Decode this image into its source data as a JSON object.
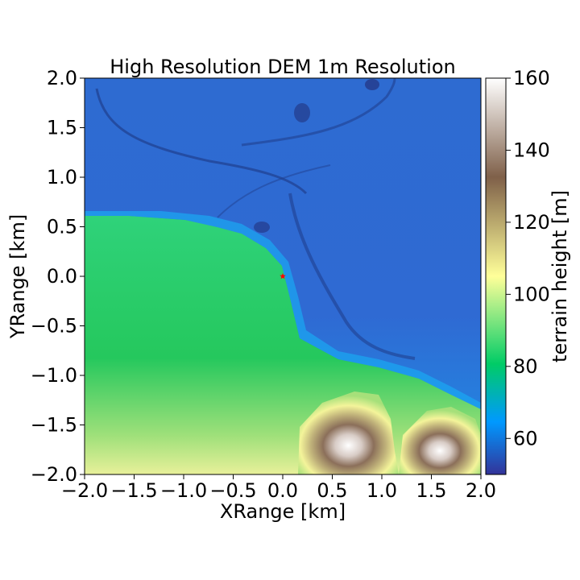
{
  "chart_data": {
    "type": "heatmap",
    "title": "High Resolution DEM 1m Resolution",
    "xlabel": "XRange [km]",
    "ylabel": "YRange [km]",
    "xlim": [
      -2.0,
      2.0
    ],
    "ylim": [
      -2.0,
      2.0
    ],
    "xticks": [
      "−2.0",
      "−1.5",
      "−1.0",
      "−0.5",
      "0.0",
      "0.5",
      "1.0",
      "1.5",
      "2.0"
    ],
    "yticks": [
      "−2.0",
      "−1.5",
      "−1.0",
      "−0.5",
      "0.0",
      "0.5",
      "1.0",
      "1.5",
      "2.0"
    ],
    "xtick_values": [
      -2.0,
      -1.5,
      -1.0,
      -0.5,
      0.0,
      0.5,
      1.0,
      1.5,
      2.0
    ],
    "ytick_values": [
      -2.0,
      -1.5,
      -1.0,
      -0.5,
      0.0,
      0.5,
      1.0,
      1.5,
      2.0
    ],
    "colorbar": {
      "label": "terrain height [m]",
      "range": [
        50,
        160
      ],
      "ticks": [
        "60",
        "80",
        "100",
        "120",
        "140",
        "160"
      ],
      "tick_values": [
        60,
        80,
        100,
        120,
        140,
        160
      ],
      "colormap": "terrain",
      "stops": [
        {
          "value": 50,
          "color": "#333399"
        },
        {
          "value": 64.7,
          "color": "#0099ff"
        },
        {
          "value": 80.7,
          "color": "#00cc66"
        },
        {
          "value": 105,
          "color": "#ffff99"
        },
        {
          "value": 132.5,
          "color": "#7f6049"
        },
        {
          "value": 160,
          "color": "#ffffff"
        }
      ]
    },
    "marker": {
      "x": 0.0,
      "y": 0.0,
      "symbol": "star",
      "color": "#ff0000"
    },
    "regions": [
      {
        "name": "lowland",
        "approx_height_m": 62
      },
      {
        "name": "green plain",
        "approx_height_m": 80
      },
      {
        "name": "hills south-east",
        "peak_height_m": 160
      }
    ]
  }
}
